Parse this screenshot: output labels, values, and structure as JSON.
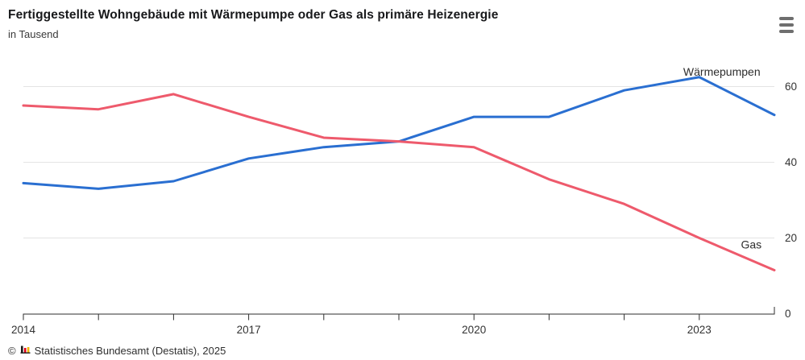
{
  "header": {
    "title": "Fertiggestellte Wohngebäude mit Wärmepumpe oder Gas als primäre Heizenergie",
    "subtitle": "in Tausend"
  },
  "menu": {
    "icon": "hamburger-menu"
  },
  "chart_data": {
    "type": "line",
    "title": "Fertiggestellte Wohngebäude mit Wärmepumpe oder Gas als primäre Heizenergie",
    "unit": "in Tausend",
    "x": [
      2014,
      2015,
      2016,
      2017,
      2018,
      2019,
      2020,
      2021,
      2022,
      2023,
      2024
    ],
    "series": [
      {
        "name": "Wärmepumpen",
        "color": "#2a6fd1",
        "values": [
          34.5,
          33,
          35,
          41,
          44,
          45.5,
          52,
          52,
          59,
          62.5,
          52.5
        ],
        "label": {
          "x_year": 2023.3,
          "value": 62.9,
          "anchor": "middle"
        }
      },
      {
        "name": "Gas",
        "color": "#ee5a6c",
        "values": [
          55,
          54,
          58,
          52,
          46.5,
          45.5,
          44,
          35.5,
          29,
          20,
          11.5
        ],
        "label": {
          "x_year": 2023.83,
          "value": 17.2,
          "anchor": "end"
        }
      }
    ],
    "xlim": [
      2014,
      2024
    ],
    "ylim": [
      0,
      64
    ],
    "x_tick_years": [
      2014,
      2015,
      2016,
      2017,
      2018,
      2019,
      2020,
      2021,
      2022,
      2023
    ],
    "x_tick_labels": [
      2014,
      2017,
      2020,
      2023
    ],
    "y_ticks": [
      0,
      20,
      40,
      60
    ],
    "grid": "horizontal",
    "legend": "direct-labels"
  },
  "footer": {
    "copyright": "©",
    "icon": "destatis-bars-logo",
    "text": "Statistisches Bundesamt (Destatis), 2025"
  }
}
